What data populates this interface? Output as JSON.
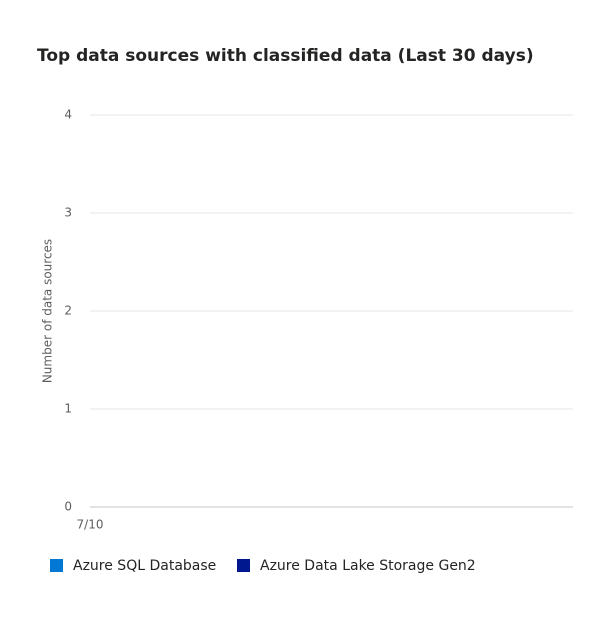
{
  "chart_data": {
    "type": "line",
    "title": "Top data sources with classified data (Last 30 days)",
    "y_label": "Number of data sources",
    "categories": [
      "7/10"
    ],
    "series": [
      {
        "name": "Azure SQL Database",
        "color": "#0078d4",
        "values": [
          0
        ]
      },
      {
        "name": "Azure Data Lake Storage Gen2",
        "color": "#00188f",
        "values": [
          0
        ]
      }
    ],
    "ylim": [
      0,
      4
    ],
    "yticks": [
      0,
      1,
      2,
      3,
      4
    ],
    "grid": true
  }
}
